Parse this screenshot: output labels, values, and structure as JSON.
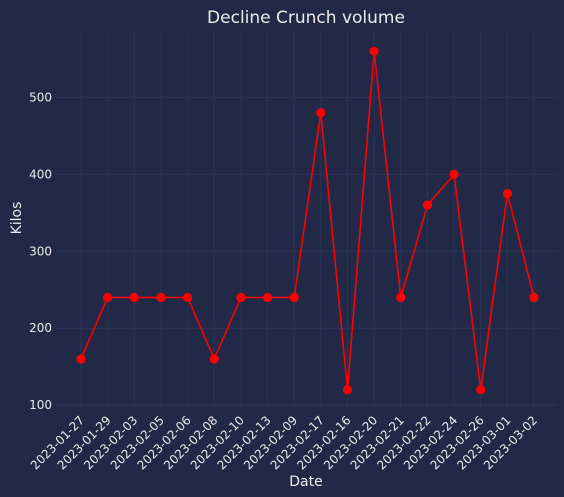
{
  "chart_data": {
    "type": "line",
    "title": "Decline Crunch volume",
    "xlabel": "Date",
    "ylabel": "Kilos",
    "categories": [
      "2023-01-27",
      "2023-01-29",
      "2023-02-03",
      "2023-02-05",
      "2023-02-06",
      "2023-02-08",
      "2023-02-10",
      "2023-02-13",
      "2023-02-09",
      "2023-02-17",
      "2023-02-16",
      "2023-02-20",
      "2023-02-21",
      "2023-02-22",
      "2023-02-24",
      "2023-02-26",
      "2023-03-01",
      "2023-03-02"
    ],
    "series": [
      {
        "values": [
          160,
          240,
          240,
          240,
          240,
          160,
          240,
          240,
          240,
          480,
          120,
          560,
          240,
          360,
          400,
          120,
          375,
          240
        ],
        "color": "#ff0000"
      }
    ],
    "ylim": [
      95,
      585
    ],
    "yticks": [
      100,
      200,
      300,
      400,
      500
    ],
    "grid": true,
    "colors": {
      "background": "#212946",
      "grid": "#2A3459",
      "text": "#ececec"
    }
  }
}
